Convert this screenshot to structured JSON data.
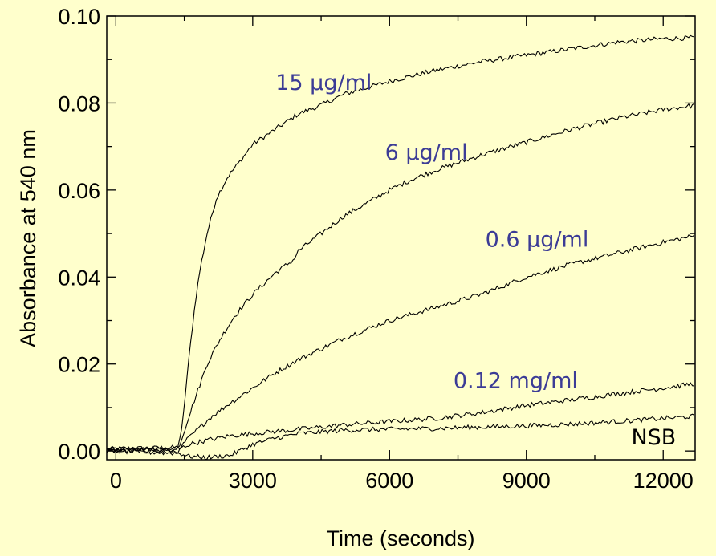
{
  "chart_data": {
    "type": "line",
    "title": "",
    "xlabel": "Time (seconds)",
    "ylabel": "Absorbance at 540 nm",
    "xlim": [
      -200,
      12700
    ],
    "ylim": [
      -0.002,
      0.1
    ],
    "grid": false,
    "x_ticks": [
      0,
      3000,
      6000,
      9000,
      12000
    ],
    "x_tick_labels": [
      "0",
      "3000",
      "6000",
      "9000",
      "12000"
    ],
    "y_ticks": [
      0.0,
      0.02,
      0.04,
      0.06,
      0.08,
      0.1
    ],
    "y_tick_labels": [
      "0.00",
      "0.02",
      "0.04",
      "0.06",
      "0.08",
      "0.10"
    ],
    "colors": {
      "background": "#FFFFCC",
      "axes": "#000000",
      "lines": "#000000",
      "label_blue": "#3C3C96"
    },
    "series": [
      {
        "name": "15 µg/ml",
        "label_color": "#3C3C96",
        "label_at": [
          3500,
          0.083
        ],
        "points": [
          [
            -200,
            0.0005
          ],
          [
            1350,
            0.0008
          ],
          [
            1450,
            0.005
          ],
          [
            1550,
            0.016
          ],
          [
            1650,
            0.026
          ],
          [
            1750,
            0.035
          ],
          [
            1850,
            0.042
          ],
          [
            2000,
            0.05
          ],
          [
            2200,
            0.058
          ],
          [
            2450,
            0.063
          ],
          [
            2750,
            0.067
          ],
          [
            3000,
            0.0705
          ],
          [
            3500,
            0.074
          ],
          [
            4000,
            0.0775
          ],
          [
            4500,
            0.0795
          ],
          [
            5000,
            0.082
          ],
          [
            6000,
            0.085
          ],
          [
            7000,
            0.0875
          ],
          [
            8000,
            0.0895
          ],
          [
            9000,
            0.091
          ],
          [
            10000,
            0.0925
          ],
          [
            11000,
            0.094
          ],
          [
            12000,
            0.0948
          ],
          [
            12700,
            0.095
          ]
        ]
      },
      {
        "name": "6 µg/ml",
        "label_color": "#3C3C96",
        "label_at": [
          5900,
          0.067
        ],
        "points": [
          [
            -200,
            0.0
          ],
          [
            1350,
            0.0003
          ],
          [
            1450,
            0.003
          ],
          [
            1600,
            0.008
          ],
          [
            1800,
            0.014
          ],
          [
            2000,
            0.02
          ],
          [
            2300,
            0.026
          ],
          [
            2600,
            0.031
          ],
          [
            3000,
            0.036
          ],
          [
            3500,
            0.041
          ],
          [
            3900,
            0.044
          ],
          [
            4000,
            0.046
          ],
          [
            4500,
            0.05
          ],
          [
            5000,
            0.054
          ],
          [
            5500,
            0.057
          ],
          [
            6000,
            0.06
          ],
          [
            6500,
            0.0625
          ],
          [
            7000,
            0.0645
          ],
          [
            8000,
            0.068
          ],
          [
            9000,
            0.071
          ],
          [
            10000,
            0.074
          ],
          [
            11000,
            0.0765
          ],
          [
            12000,
            0.0785
          ],
          [
            12700,
            0.0795
          ]
        ]
      },
      {
        "name": "0.6 µg/ml",
        "label_color": "#3C3C96",
        "label_at": [
          8100,
          0.047
        ],
        "points": [
          [
            -200,
            0.0
          ],
          [
            1400,
            0.0
          ],
          [
            1500,
            0.002
          ],
          [
            1800,
            0.005
          ],
          [
            2100,
            0.008
          ],
          [
            2500,
            0.011
          ],
          [
            3000,
            0.0145
          ],
          [
            3500,
            0.018
          ],
          [
            4000,
            0.021
          ],
          [
            4500,
            0.0235
          ],
          [
            5000,
            0.026
          ],
          [
            5500,
            0.028
          ],
          [
            6000,
            0.03
          ],
          [
            7000,
            0.033
          ],
          [
            8000,
            0.036
          ],
          [
            9000,
            0.04
          ],
          [
            10000,
            0.043
          ],
          [
            11000,
            0.0455
          ],
          [
            12000,
            0.048
          ],
          [
            12700,
            0.0495
          ]
        ]
      },
      {
        "name": "0.12 mg/ml",
        "label_color": "#3C3C96",
        "label_at": [
          7400,
          0.0145
        ],
        "points": [
          [
            -200,
            0.0005
          ],
          [
            1400,
            0.0005
          ],
          [
            1600,
            0.0015
          ],
          [
            2000,
            0.0025
          ],
          [
            2500,
            0.0035
          ],
          [
            3000,
            0.004
          ],
          [
            4000,
            0.005
          ],
          [
            5000,
            0.006
          ],
          [
            6000,
            0.0068
          ],
          [
            7000,
            0.0075
          ],
          [
            8000,
            0.0088
          ],
          [
            9000,
            0.0105
          ],
          [
            10000,
            0.0118
          ],
          [
            11000,
            0.0132
          ],
          [
            12000,
            0.0145
          ],
          [
            12700,
            0.0155
          ]
        ]
      },
      {
        "name": "NSB",
        "label_color": "#000000",
        "label_at": [
          11300,
          0.0015
        ],
        "points": [
          [
            -200,
            0.0
          ],
          [
            1400,
            -0.0005
          ],
          [
            1600,
            -0.0012
          ],
          [
            2000,
            -0.0015
          ],
          [
            2500,
            -0.001
          ],
          [
            3000,
            0.0015
          ],
          [
            3500,
            0.003
          ],
          [
            4000,
            0.004
          ],
          [
            5000,
            0.0048
          ],
          [
            6000,
            0.005
          ],
          [
            7000,
            0.0052
          ],
          [
            8000,
            0.0055
          ],
          [
            9000,
            0.0058
          ],
          [
            10000,
            0.0062
          ],
          [
            11000,
            0.0068
          ],
          [
            12000,
            0.0075
          ],
          [
            12700,
            0.008
          ]
        ]
      }
    ]
  }
}
